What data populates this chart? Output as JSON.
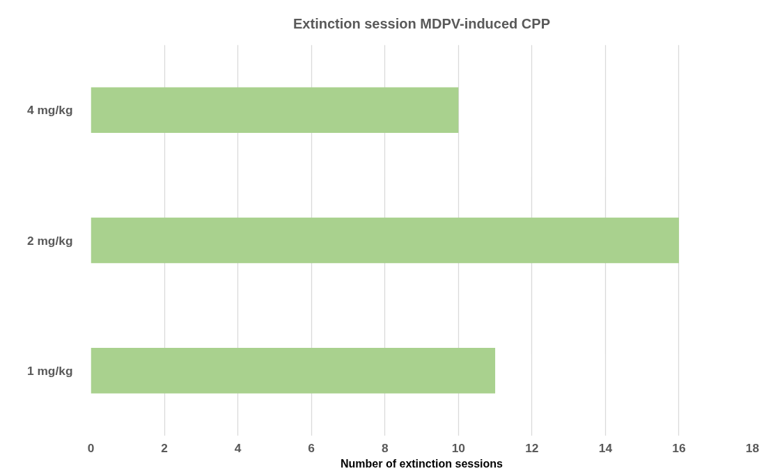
{
  "chart_data": {
    "type": "bar",
    "orientation": "horizontal",
    "title": "Extinction session MDPV-induced CPP",
    "xlabel": "Number of extinction sessions",
    "categories": [
      "4 mg/kg",
      "2 mg/kg",
      "1 mg/kg"
    ],
    "values": [
      10,
      16,
      11
    ],
    "color": "#a9d18e",
    "xlim": [
      0,
      18
    ],
    "xticks": [
      0,
      2,
      4,
      6,
      8,
      10,
      12,
      14,
      16,
      18
    ],
    "grid": "x"
  }
}
